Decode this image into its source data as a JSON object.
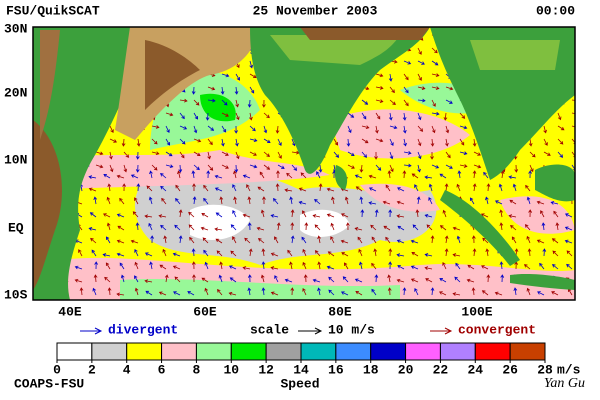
{
  "header": {
    "left": "FSU/QuikSCAT",
    "date": "25 November 2003",
    "time": "00:00"
  },
  "map": {
    "lat_labels": [
      "30N",
      "20N",
      "10N",
      "EQ",
      "10S"
    ],
    "lon_labels": [
      "40E",
      "60E",
      "80E",
      "100E"
    ]
  },
  "legend": {
    "divergent": "divergent",
    "scale": "scale",
    "scale_value": "10 m/s",
    "convergent": "convergent"
  },
  "colorbar": {
    "ticks": [
      0,
      2,
      4,
      6,
      8,
      10,
      12,
      14,
      16,
      18,
      20,
      22,
      24,
      26,
      28
    ],
    "unit": "m/s",
    "colors": [
      "#ffffff",
      "#d0d0d0",
      "#ffff00",
      "#ffc0c8",
      "#98f898",
      "#00e800",
      "#a0a0a0",
      "#00b8b8",
      "#3c8cff",
      "#0000c8",
      "#ff60ff",
      "#b080ff",
      "#ff0000",
      "#c84000"
    ],
    "label": "Speed"
  },
  "footer": {
    "left": "COAPS-FSU",
    "signature": "Yan Gu"
  }
}
